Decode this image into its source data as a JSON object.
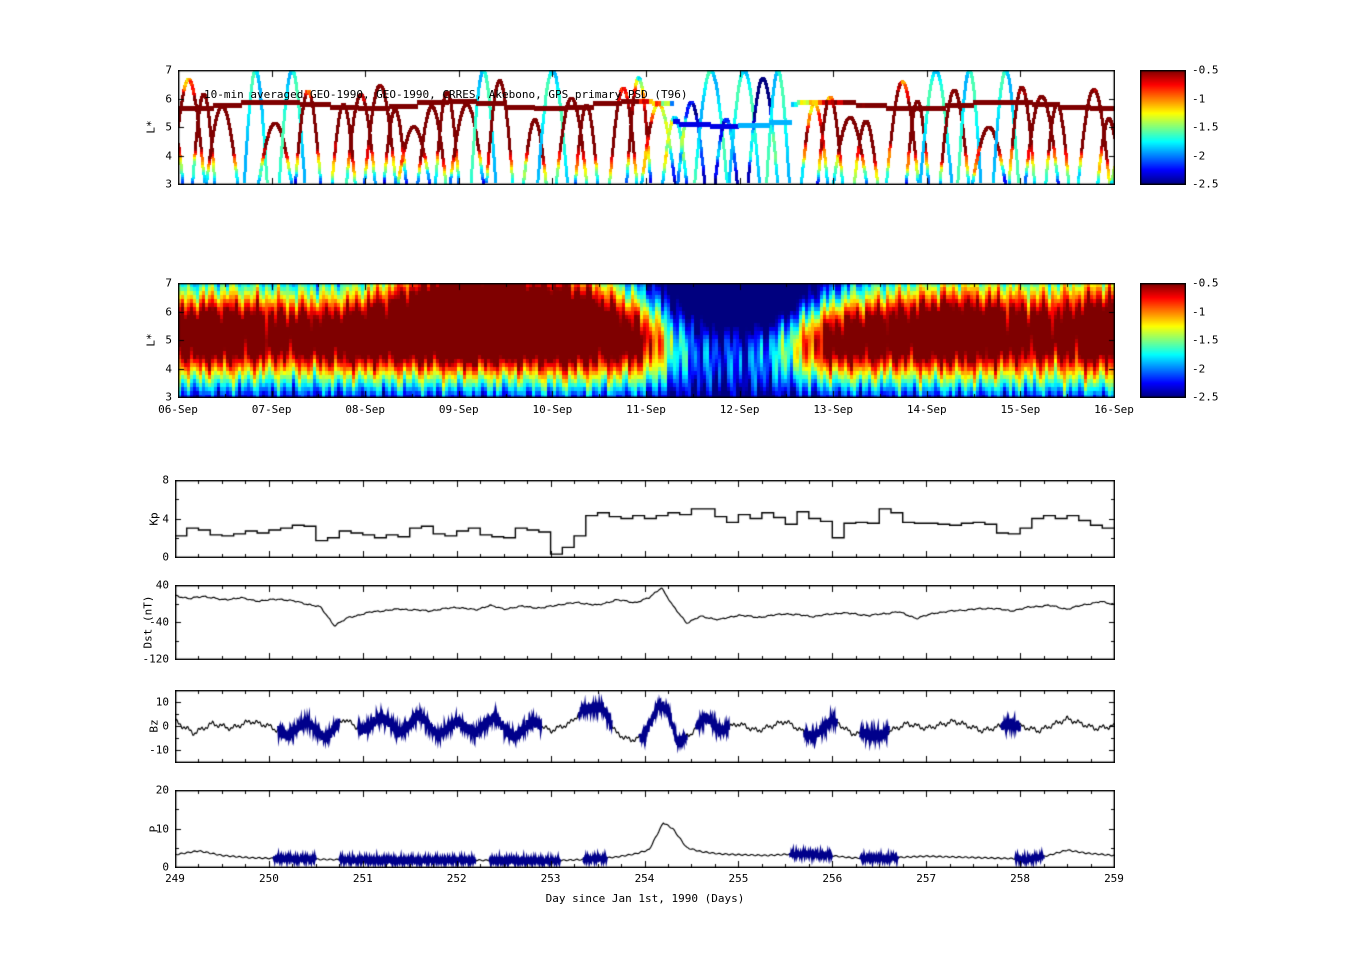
{
  "figure": {
    "background": "#ffffff",
    "accent_colors": {
      "line": "#000000",
      "thick_overlay": "#00008b"
    }
  },
  "colorbar": {
    "vmin": -2.5,
    "vmax": -0.5,
    "tick_labels": [
      "-0.5",
      "-1",
      "-1.5",
      "-2",
      "-2.5"
    ]
  },
  "chart_data": [
    {
      "id": "psd-scatter",
      "type": "scatter",
      "title": "10-min averaged GEO-1990, GEO-1990, CRRES, Akebono, GPS  primary PSD (T96)",
      "ylabel": "L*",
      "ylim": [
        3,
        7
      ],
      "yticks": [
        3,
        4,
        5,
        6,
        7
      ],
      "xlim": [
        249,
        259
      ],
      "colorbar": {
        "vmin": -2.5,
        "vmax": -0.5,
        "tick_labels": [
          "-0.5",
          "-1",
          "-1.5",
          "-2",
          "-2.5"
        ]
      },
      "passes": {
        "period_days": 0.3,
        "t_start": 248.75,
        "L_min": 3,
        "L_max_typical": 6.3,
        "L_max_tall": 7.0,
        "value_offset": 0.2
      },
      "geo_line": {
        "L": 5.78,
        "quiet_interval": [
          254.3,
          255.55
        ],
        "quiet_L": 5.15,
        "quiet_value": -2.3,
        "value_offset": 0.45
      }
    },
    {
      "id": "psd-heatmap",
      "type": "heatmap",
      "ylabel": "L*",
      "ylim": [
        3,
        7
      ],
      "yticks": [
        3,
        4,
        5,
        6,
        7
      ],
      "xlim": [
        249,
        259
      ],
      "xtick_labels": [
        "06-Sep",
        "07-Sep",
        "08-Sep",
        "09-Sep",
        "10-Sep",
        "11-Sep",
        "12-Sep",
        "13-Sep",
        "14-Sep",
        "15-Sep",
        "16-Sep"
      ],
      "colorbar": {
        "vmin": -2.5,
        "vmax": -0.5,
        "tick_labels": [
          "-0.5",
          "-1",
          "-1.5",
          "-2",
          "-2.5"
        ]
      },
      "base_profile": {
        "L": [
          3,
          3.5,
          4,
          4.5,
          5,
          5.5,
          6,
          6.5,
          7
        ],
        "v": [
          -2.45,
          -2.1,
          -1.8,
          -1.55,
          -1.45,
          -1.55,
          -1.75,
          -2.0,
          -2.2
        ]
      },
      "storms": [
        [
          249.15,
          0.45,
          5.2,
          1.1,
          1.05
        ],
        [
          249.9,
          0.55,
          5.4,
          1.2,
          0.95
        ],
        [
          250.8,
          0.45,
          5.0,
          1.0,
          0.85
        ],
        [
          251.6,
          0.55,
          5.8,
          1.4,
          1.15
        ],
        [
          252.2,
          0.45,
          6.2,
          1.2,
          1.1
        ],
        [
          252.7,
          0.7,
          5.9,
          1.5,
          1.25
        ],
        [
          253.35,
          0.4,
          5.6,
          1.4,
          1.15
        ],
        [
          253.95,
          0.25,
          5.0,
          1.1,
          0.95
        ],
        [
          254.65,
          0.7,
          6.2,
          1.5,
          -1.0
        ],
        [
          255.35,
          0.45,
          6.4,
          1.2,
          -0.75
        ],
        [
          255.95,
          0.35,
          5.0,
          1.0,
          0.9
        ],
        [
          256.6,
          0.55,
          5.3,
          1.2,
          1.0
        ],
        [
          257.35,
          0.45,
          5.5,
          1.3,
          0.95
        ],
        [
          258.25,
          0.55,
          5.4,
          1.4,
          1.05
        ],
        [
          258.95,
          0.3,
          5.6,
          1.5,
          1.05
        ]
      ]
    },
    {
      "id": "kp",
      "type": "line",
      "ylabel": "Kp",
      "ylim": [
        0,
        8
      ],
      "yticks": [
        0,
        4,
        8
      ],
      "yticks_minor": [
        2,
        6
      ],
      "xlim": [
        249,
        259
      ],
      "x_start": 249,
      "x_step_days": 0.125,
      "values": [
        2.2,
        3.0,
        2.8,
        2.3,
        2.2,
        2.4,
        2.7,
        2.5,
        2.8,
        3.0,
        3.3,
        3.2,
        1.7,
        2.0,
        2.7,
        2.5,
        2.3,
        2.0,
        2.3,
        2.1,
        3.0,
        3.2,
        2.4,
        2.2,
        2.7,
        3.0,
        2.3,
        2.1,
        2.0,
        3.0,
        2.8,
        2.6,
        0.3,
        1.0,
        2.2,
        4.3,
        4.6,
        4.2,
        4.0,
        4.3,
        4.0,
        4.3,
        4.6,
        4.4,
        5.0,
        5.0,
        4.2,
        3.6,
        4.4,
        4.0,
        4.6,
        4.1,
        3.4,
        4.7,
        4.0,
        3.7,
        2.0,
        3.5,
        3.6,
        3.5,
        5.0,
        4.6,
        3.6,
        3.5,
        3.5,
        3.4,
        3.3,
        3.5,
        3.6,
        3.4,
        2.5,
        2.4,
        3.0,
        4.0,
        4.3,
        4.0,
        4.3,
        3.8,
        3.3,
        3.0
      ]
    },
    {
      "id": "dst",
      "type": "line",
      "ylabel": "Dst (nT)",
      "ylim": [
        -120,
        40
      ],
      "yticks": [
        -120,
        -40,
        40
      ],
      "yticks_minor": [
        -80,
        0
      ],
      "xlim": [
        249,
        259
      ],
      "points": [
        [
          249.0,
          18
        ],
        [
          249.15,
          10
        ],
        [
          249.3,
          16
        ],
        [
          249.5,
          8
        ],
        [
          249.7,
          12
        ],
        [
          249.9,
          5
        ],
        [
          250.1,
          10
        ],
        [
          250.3,
          4
        ],
        [
          250.55,
          -8
        ],
        [
          250.7,
          -48
        ],
        [
          250.85,
          -30
        ],
        [
          251.1,
          -18
        ],
        [
          251.4,
          -12
        ],
        [
          251.7,
          -16
        ],
        [
          252.0,
          -8
        ],
        [
          252.2,
          -14
        ],
        [
          252.35,
          -4
        ],
        [
          252.5,
          -12
        ],
        [
          252.7,
          -6
        ],
        [
          252.9,
          -10
        ],
        [
          253.1,
          -2
        ],
        [
          253.3,
          2
        ],
        [
          253.5,
          -4
        ],
        [
          253.7,
          8
        ],
        [
          253.9,
          2
        ],
        [
          254.05,
          12
        ],
        [
          254.18,
          35
        ],
        [
          254.3,
          -5
        ],
        [
          254.45,
          -42
        ],
        [
          254.6,
          -28
        ],
        [
          254.8,
          -35
        ],
        [
          255.0,
          -25
        ],
        [
          255.2,
          -30
        ],
        [
          255.5,
          -22
        ],
        [
          255.8,
          -28
        ],
        [
          256.1,
          -20
        ],
        [
          256.4,
          -26
        ],
        [
          256.7,
          -18
        ],
        [
          256.9,
          -32
        ],
        [
          257.1,
          -20
        ],
        [
          257.4,
          -14
        ],
        [
          257.7,
          -10
        ],
        [
          257.9,
          -16
        ],
        [
          258.1,
          -8
        ],
        [
          258.3,
          -4
        ],
        [
          258.5,
          -12
        ],
        [
          258.7,
          -2
        ],
        [
          258.85,
          4
        ],
        [
          259.0,
          -2
        ]
      ]
    },
    {
      "id": "bz",
      "type": "line",
      "ylabel": "Bz",
      "ylim": [
        -15,
        15
      ],
      "yticks": [
        -10,
        0,
        10
      ],
      "yticks_minor": [
        -5,
        5
      ],
      "xlim": [
        249,
        259
      ],
      "points": [
        [
          249.0,
          2
        ],
        [
          249.2,
          -3
        ],
        [
          249.4,
          1
        ],
        [
          249.6,
          -1
        ],
        [
          249.8,
          2
        ],
        [
          250.0,
          0
        ],
        [
          250.2,
          -4
        ],
        [
          250.4,
          2
        ],
        [
          250.6,
          -5
        ],
        [
          250.8,
          3
        ],
        [
          251.0,
          -2
        ],
        [
          251.2,
          4
        ],
        [
          251.4,
          -3
        ],
        [
          251.6,
          5
        ],
        [
          251.8,
          -4
        ],
        [
          252.0,
          2
        ],
        [
          252.2,
          -3
        ],
        [
          252.4,
          4
        ],
        [
          252.6,
          -5
        ],
        [
          252.8,
          2
        ],
        [
          253.0,
          -2
        ],
        [
          253.2,
          1
        ],
        [
          253.35,
          7
        ],
        [
          253.55,
          8
        ],
        [
          253.7,
          -3
        ],
        [
          253.85,
          -6
        ],
        [
          254.0,
          -4
        ],
        [
          254.15,
          9
        ],
        [
          254.25,
          7
        ],
        [
          254.35,
          -7
        ],
        [
          254.5,
          -3
        ],
        [
          254.65,
          4
        ],
        [
          254.8,
          -2
        ],
        [
          255.0,
          1
        ],
        [
          255.2,
          -2
        ],
        [
          255.5,
          2
        ],
        [
          255.8,
          -5
        ],
        [
          256.0,
          3
        ],
        [
          256.2,
          -3
        ],
        [
          256.5,
          -4
        ],
        [
          256.8,
          1
        ],
        [
          257.0,
          -1
        ],
        [
          257.3,
          2
        ],
        [
          257.6,
          -2
        ],
        [
          257.9,
          1
        ],
        [
          258.2,
          -2
        ],
        [
          258.5,
          3
        ],
        [
          258.8,
          -1
        ],
        [
          259.0,
          0
        ]
      ],
      "thick_segments": [
        [
          250.1,
          250.75
        ],
        [
          250.95,
          252.9
        ],
        [
          253.3,
          253.65
        ],
        [
          253.95,
          254.45
        ],
        [
          254.55,
          254.9
        ],
        [
          255.7,
          256.05
        ],
        [
          256.3,
          256.6
        ],
        [
          257.8,
          258.0
        ]
      ],
      "thick_noise_amp": 1.6
    },
    {
      "id": "p",
      "type": "line",
      "ylabel": "P",
      "xlabel": "Day since Jan 1st, 1990 (Days)",
      "ylim": [
        0,
        20
      ],
      "yticks": [
        0,
        10,
        20
      ],
      "yticks_minor": [
        5,
        15
      ],
      "xlim": [
        249,
        259
      ],
      "xtick_labels": [
        "249",
        "250",
        "251",
        "252",
        "253",
        "254",
        "255",
        "256",
        "257",
        "258",
        "259"
      ],
      "points": [
        [
          249.0,
          3.2
        ],
        [
          249.25,
          4.2
        ],
        [
          249.5,
          3.0
        ],
        [
          249.8,
          2.4
        ],
        [
          250.1,
          2.2
        ],
        [
          250.5,
          2.0
        ],
        [
          251.0,
          1.8
        ],
        [
          251.5,
          1.7
        ],
        [
          252.0,
          1.8
        ],
        [
          252.5,
          1.7
        ],
        [
          253.0,
          1.6
        ],
        [
          253.4,
          2.0
        ],
        [
          253.7,
          2.6
        ],
        [
          253.9,
          3.4
        ],
        [
          254.05,
          4.5
        ],
        [
          254.2,
          11.5
        ],
        [
          254.3,
          10.0
        ],
        [
          254.45,
          5.0
        ],
        [
          254.6,
          4.0
        ],
        [
          254.8,
          3.4
        ],
        [
          255.0,
          3.2
        ],
        [
          255.3,
          3.0
        ],
        [
          255.6,
          3.4
        ],
        [
          255.9,
          3.2
        ],
        [
          256.2,
          2.4
        ],
        [
          256.5,
          2.2
        ],
        [
          256.8,
          2.6
        ],
        [
          257.0,
          2.8
        ],
        [
          257.3,
          2.6
        ],
        [
          257.6,
          2.4
        ],
        [
          257.9,
          2.2
        ],
        [
          258.1,
          2.0
        ],
        [
          258.3,
          3.0
        ],
        [
          258.5,
          4.4
        ],
        [
          258.7,
          3.6
        ],
        [
          259.0,
          3.0
        ]
      ],
      "thick_segments": [
        [
          250.05,
          250.5
        ],
        [
          250.75,
          252.2
        ],
        [
          252.35,
          253.1
        ],
        [
          253.35,
          253.6
        ],
        [
          255.55,
          256.0
        ],
        [
          256.3,
          256.7
        ],
        [
          257.95,
          258.25
        ]
      ],
      "thick_noise_amp": 0.4
    }
  ]
}
